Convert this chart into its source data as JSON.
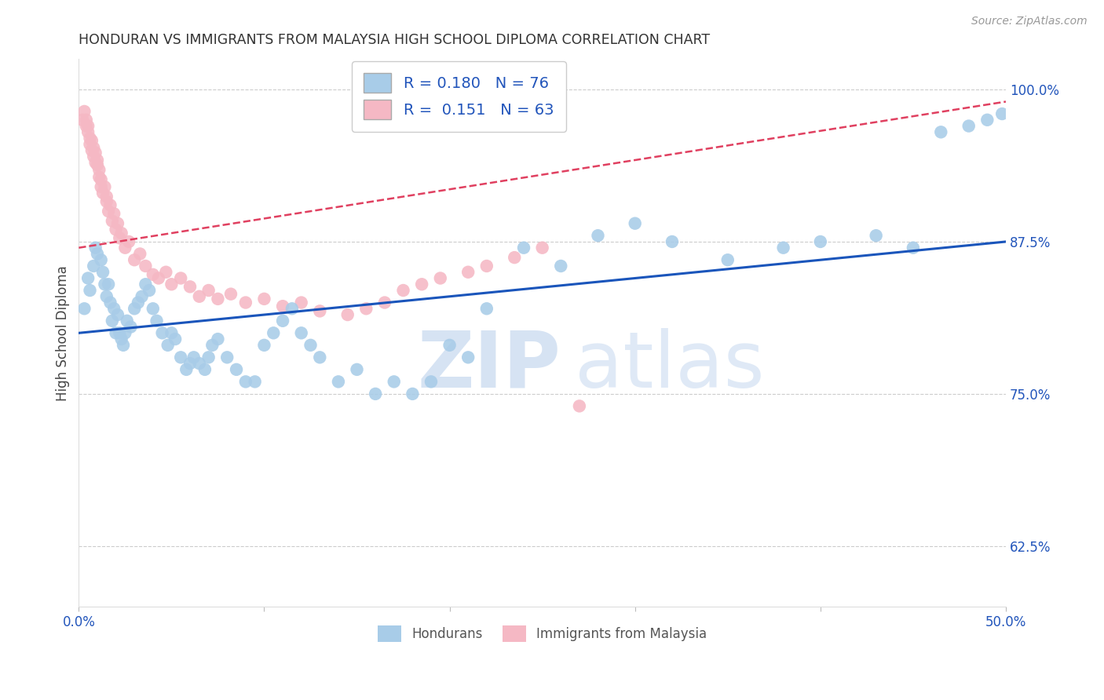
{
  "title": "HONDURAN VS IMMIGRANTS FROM MALAYSIA HIGH SCHOOL DIPLOMA CORRELATION CHART",
  "source": "Source: ZipAtlas.com",
  "ylabel": "High School Diploma",
  "xmin": 0.0,
  "xmax": 0.5,
  "ymin": 0.575,
  "ymax": 1.025,
  "yticks": [
    0.625,
    0.75,
    0.875,
    1.0
  ],
  "ytick_labels": [
    "62.5%",
    "75.0%",
    "87.5%",
    "100.0%"
  ],
  "xticks": [
    0.0,
    0.1,
    0.2,
    0.3,
    0.4,
    0.5
  ],
  "xtick_labels": [
    "0.0%",
    "",
    "",
    "",
    "",
    "50.0%"
  ],
  "legend_labels": [
    "Hondurans",
    "Immigrants from Malaysia"
  ],
  "blue_R": 0.18,
  "blue_N": 76,
  "pink_R": 0.151,
  "pink_N": 63,
  "blue_color": "#a8cce8",
  "pink_color": "#f5b8c4",
  "blue_line_color": "#1a55bb",
  "pink_line_color": "#e04060",
  "watermark_zip": "ZIP",
  "watermark_atlas": "atlas",
  "blue_x": [
    0.003,
    0.005,
    0.006,
    0.008,
    0.009,
    0.01,
    0.012,
    0.013,
    0.014,
    0.015,
    0.016,
    0.017,
    0.018,
    0.019,
    0.02,
    0.021,
    0.022,
    0.023,
    0.024,
    0.025,
    0.026,
    0.028,
    0.03,
    0.032,
    0.034,
    0.036,
    0.038,
    0.04,
    0.042,
    0.045,
    0.048,
    0.05,
    0.052,
    0.055,
    0.058,
    0.06,
    0.062,
    0.065,
    0.068,
    0.07,
    0.072,
    0.075,
    0.08,
    0.085,
    0.09,
    0.095,
    0.1,
    0.105,
    0.11,
    0.115,
    0.12,
    0.125,
    0.13,
    0.14,
    0.15,
    0.16,
    0.17,
    0.18,
    0.19,
    0.2,
    0.21,
    0.22,
    0.24,
    0.26,
    0.28,
    0.3,
    0.32,
    0.35,
    0.38,
    0.4,
    0.43,
    0.45,
    0.465,
    0.48,
    0.49,
    0.498
  ],
  "blue_y": [
    0.82,
    0.845,
    0.835,
    0.855,
    0.87,
    0.865,
    0.86,
    0.85,
    0.84,
    0.83,
    0.84,
    0.825,
    0.81,
    0.82,
    0.8,
    0.815,
    0.8,
    0.795,
    0.79,
    0.8,
    0.81,
    0.805,
    0.82,
    0.825,
    0.83,
    0.84,
    0.835,
    0.82,
    0.81,
    0.8,
    0.79,
    0.8,
    0.795,
    0.78,
    0.77,
    0.775,
    0.78,
    0.775,
    0.77,
    0.78,
    0.79,
    0.795,
    0.78,
    0.77,
    0.76,
    0.76,
    0.79,
    0.8,
    0.81,
    0.82,
    0.8,
    0.79,
    0.78,
    0.76,
    0.77,
    0.75,
    0.76,
    0.75,
    0.76,
    0.79,
    0.78,
    0.82,
    0.87,
    0.855,
    0.88,
    0.89,
    0.875,
    0.86,
    0.87,
    0.875,
    0.88,
    0.87,
    0.965,
    0.97,
    0.975,
    0.98
  ],
  "pink_x": [
    0.002,
    0.003,
    0.004,
    0.004,
    0.005,
    0.005,
    0.006,
    0.006,
    0.007,
    0.007,
    0.008,
    0.008,
    0.009,
    0.009,
    0.01,
    0.01,
    0.011,
    0.011,
    0.012,
    0.012,
    0.013,
    0.014,
    0.015,
    0.015,
    0.016,
    0.017,
    0.018,
    0.019,
    0.02,
    0.021,
    0.022,
    0.023,
    0.025,
    0.027,
    0.03,
    0.033,
    0.036,
    0.04,
    0.043,
    0.047,
    0.05,
    0.055,
    0.06,
    0.065,
    0.07,
    0.075,
    0.082,
    0.09,
    0.1,
    0.11,
    0.12,
    0.13,
    0.145,
    0.155,
    0.165,
    0.175,
    0.185,
    0.195,
    0.21,
    0.22,
    0.235,
    0.25,
    0.27
  ],
  "pink_y": [
    0.975,
    0.982,
    0.97,
    0.975,
    0.965,
    0.97,
    0.955,
    0.96,
    0.95,
    0.958,
    0.945,
    0.952,
    0.94,
    0.948,
    0.938,
    0.942,
    0.928,
    0.934,
    0.92,
    0.926,
    0.915,
    0.92,
    0.908,
    0.912,
    0.9,
    0.905,
    0.892,
    0.898,
    0.885,
    0.89,
    0.878,
    0.882,
    0.87,
    0.875,
    0.86,
    0.865,
    0.855,
    0.848,
    0.845,
    0.85,
    0.84,
    0.845,
    0.838,
    0.83,
    0.835,
    0.828,
    0.832,
    0.825,
    0.828,
    0.822,
    0.825,
    0.818,
    0.815,
    0.82,
    0.825,
    0.835,
    0.84,
    0.845,
    0.85,
    0.855,
    0.862,
    0.87,
    0.74
  ],
  "blue_trend_x0": 0.0,
  "blue_trend_x1": 0.5,
  "blue_trend_y0": 0.8,
  "blue_trend_y1": 0.875,
  "pink_trend_x0": 0.0,
  "pink_trend_x1": 0.5,
  "pink_trend_y0": 0.87,
  "pink_trend_y1": 0.99
}
